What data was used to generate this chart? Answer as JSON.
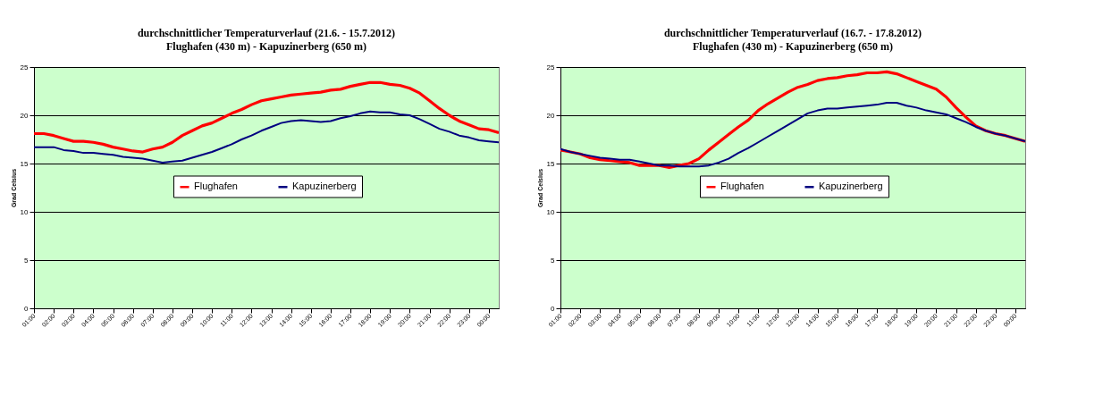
{
  "chart_data": [
    {
      "type": "line",
      "title": "durchschnittlicher Temperaturverlauf (21.6. - 15.7.2012)",
      "subtitle": "Flughafen (430 m) - Kapuzinerberg (650 m)",
      "ylabel": "Grad Celsius",
      "x": [
        1,
        1.5,
        2,
        2.5,
        3,
        3.5,
        4,
        4.5,
        5,
        5.5,
        6,
        6.5,
        7,
        7.5,
        8,
        8.5,
        9,
        9.5,
        10,
        10.5,
        11,
        11.5,
        12,
        12.5,
        13,
        13.5,
        14,
        14.5,
        15,
        15.5,
        16,
        16.5,
        17,
        17.5,
        18,
        18.5,
        19,
        19.5,
        20,
        20.5,
        21,
        21.5,
        22,
        22.5,
        23,
        23.5,
        24,
        24.5
      ],
      "series": [
        {
          "name": "Flughafen",
          "color": "#ff0000",
          "values": [
            18.1,
            18.1,
            17.9,
            17.6,
            17.3,
            17.3,
            17.2,
            17.0,
            16.7,
            16.5,
            16.3,
            16.2,
            16.5,
            16.7,
            17.2,
            17.9,
            18.4,
            18.9,
            19.2,
            19.7,
            20.2,
            20.6,
            21.1,
            21.5,
            21.7,
            21.9,
            22.1,
            22.2,
            22.3,
            22.4,
            22.6,
            22.7,
            23.0,
            23.2,
            23.4,
            23.4,
            23.2,
            23.1,
            22.8,
            22.3,
            21.5,
            20.7,
            20.0,
            19.4,
            19.0,
            18.6,
            18.5,
            18.2
          ]
        },
        {
          "name": "Kapuzinerberg",
          "color": "#000080",
          "values": [
            16.7,
            16.7,
            16.7,
            16.4,
            16.3,
            16.1,
            16.1,
            16.0,
            15.9,
            15.7,
            15.6,
            15.5,
            15.3,
            15.1,
            15.2,
            15.3,
            15.6,
            15.9,
            16.2,
            16.6,
            17.0,
            17.5,
            17.9,
            18.4,
            18.8,
            19.2,
            19.4,
            19.5,
            19.4,
            19.3,
            19.4,
            19.7,
            19.9,
            20.2,
            20.4,
            20.3,
            20.3,
            20.1,
            20.0,
            19.6,
            19.1,
            18.6,
            18.3,
            17.9,
            17.7,
            17.4,
            17.3,
            17.2
          ]
        }
      ],
      "xlim": [
        1,
        24.5
      ],
      "xticks": [
        {
          "value": 1,
          "label": "01:00"
        },
        {
          "value": 2,
          "label": "02:00"
        },
        {
          "value": 3,
          "label": "03:00"
        },
        {
          "value": 4,
          "label": "04:00"
        },
        {
          "value": 5,
          "label": "05:00"
        },
        {
          "value": 6,
          "label": "06:00"
        },
        {
          "value": 7,
          "label": "07:00"
        },
        {
          "value": 8,
          "label": "08:00"
        },
        {
          "value": 9,
          "label": "09:00"
        },
        {
          "value": 10,
          "label": "10:00"
        },
        {
          "value": 11,
          "label": "11:00"
        },
        {
          "value": 12,
          "label": "12:00"
        },
        {
          "value": 13,
          "label": "13:00"
        },
        {
          "value": 14,
          "label": "14:00"
        },
        {
          "value": 15,
          "label": "15:00"
        },
        {
          "value": 16,
          "label": "16:00"
        },
        {
          "value": 17,
          "label": "17:00"
        },
        {
          "value": 18,
          "label": "18:00"
        },
        {
          "value": 19,
          "label": "19:00"
        },
        {
          "value": 20,
          "label": "20:00"
        },
        {
          "value": 21,
          "label": "21:00"
        },
        {
          "value": 22,
          "label": "22:00"
        },
        {
          "value": 23,
          "label": "23:00"
        },
        {
          "value": 24,
          "label": "00:00"
        }
      ],
      "ylim": [
        0,
        25
      ],
      "yticks": [
        0,
        5,
        10,
        15,
        20,
        25
      ],
      "grid": "y",
      "legend": "center",
      "line_style": "solid",
      "marker": "none"
    },
    {
      "type": "line",
      "title": "durchschnittlicher Temperaturverlauf (16.7. - 17.8.2012)",
      "subtitle": "Flughafen (430 m) - Kapuzinerberg (650 m)",
      "ylabel": "Grad Celsius",
      "x": [
        1,
        1.5,
        2,
        2.5,
        3,
        3.5,
        4,
        4.5,
        5,
        5.5,
        6,
        6.5,
        7,
        7.5,
        8,
        8.5,
        9,
        9.5,
        10,
        10.5,
        11,
        11.5,
        12,
        12.5,
        13,
        13.5,
        14,
        14.5,
        15,
        15.5,
        16,
        16.5,
        17,
        17.5,
        18,
        18.5,
        19,
        19.5,
        20,
        20.5,
        21,
        21.5,
        22,
        22.5,
        23,
        23.5,
        24,
        24.5
      ],
      "series": [
        {
          "name": "Flughafen",
          "color": "#ff0000",
          "values": [
            16.4,
            16.2,
            16.0,
            15.6,
            15.4,
            15.3,
            15.2,
            15.1,
            14.8,
            14.8,
            14.8,
            14.6,
            14.8,
            15.0,
            15.5,
            16.4,
            17.2,
            18.0,
            18.8,
            19.5,
            20.5,
            21.2,
            21.8,
            22.4,
            22.9,
            23.2,
            23.6,
            23.8,
            23.9,
            24.1,
            24.2,
            24.4,
            24.4,
            24.5,
            24.3,
            23.9,
            23.5,
            23.1,
            22.7,
            21.9,
            20.8,
            19.8,
            18.9,
            18.4,
            18.1,
            17.9,
            17.6,
            17.3
          ]
        },
        {
          "name": "Kapuzinerberg",
          "color": "#000080",
          "values": [
            16.5,
            16.2,
            16.0,
            15.8,
            15.6,
            15.5,
            15.4,
            15.4,
            15.2,
            15.0,
            14.8,
            14.8,
            14.7,
            14.7,
            14.7,
            14.8,
            15.1,
            15.5,
            16.1,
            16.6,
            17.2,
            17.8,
            18.4,
            19.0,
            19.6,
            20.2,
            20.5,
            20.7,
            20.7,
            20.8,
            20.9,
            21.0,
            21.1,
            21.3,
            21.3,
            21.0,
            20.8,
            20.5,
            20.3,
            20.1,
            19.7,
            19.3,
            18.8,
            18.4,
            18.1,
            17.9,
            17.6,
            17.3
          ]
        }
      ],
      "xlim": [
        1,
        24.5
      ],
      "xticks": [
        {
          "value": 1,
          "label": "01:00"
        },
        {
          "value": 2,
          "label": "02:00"
        },
        {
          "value": 3,
          "label": "03:00"
        },
        {
          "value": 4,
          "label": "04:00"
        },
        {
          "value": 5,
          "label": "05:00"
        },
        {
          "value": 6,
          "label": "06:00"
        },
        {
          "value": 7,
          "label": "07:00"
        },
        {
          "value": 8,
          "label": "08:00"
        },
        {
          "value": 9,
          "label": "09:00"
        },
        {
          "value": 10,
          "label": "10:00"
        },
        {
          "value": 11,
          "label": "11:00"
        },
        {
          "value": 12,
          "label": "12:00"
        },
        {
          "value": 13,
          "label": "13:00"
        },
        {
          "value": 14,
          "label": "14:00"
        },
        {
          "value": 15,
          "label": "15:00"
        },
        {
          "value": 16,
          "label": "16:00"
        },
        {
          "value": 17,
          "label": "17:00"
        },
        {
          "value": 18,
          "label": "18:00"
        },
        {
          "value": 19,
          "label": "19:00"
        },
        {
          "value": 20,
          "label": "20:00"
        },
        {
          "value": 21,
          "label": "21:00"
        },
        {
          "value": 22,
          "label": "22:00"
        },
        {
          "value": 23,
          "label": "23:00"
        },
        {
          "value": 24,
          "label": "00:00"
        }
      ],
      "ylim": [
        0,
        25
      ],
      "yticks": [
        0,
        5,
        10,
        15,
        20,
        25
      ],
      "grid": "y",
      "legend": "center",
      "line_style": "solid",
      "marker": "none"
    }
  ]
}
